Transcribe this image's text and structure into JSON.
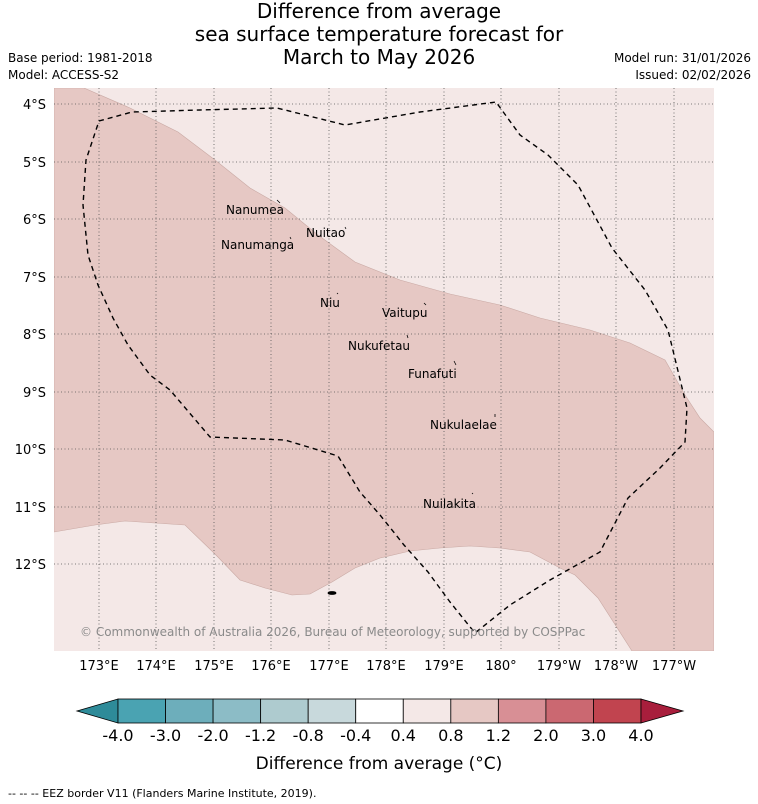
{
  "title": {
    "line1": "Difference from average",
    "line2": "sea surface temperature forecast for",
    "line3": "March to May 2026"
  },
  "meta": {
    "base_period": "Base period: 1981-2018",
    "model": "Model: ACCESS-S2",
    "model_run": "Model run: 31/01/2026",
    "issued": "Issued: 02/02/2026"
  },
  "map": {
    "lat_labels": [
      "4°S",
      "5°S",
      "6°S",
      "7°S",
      "8°S",
      "9°S",
      "10°S",
      "11°S",
      "12°S"
    ],
    "lon_labels": [
      "173°E",
      "174°E",
      "175°E",
      "176°E",
      "177°E",
      "178°E",
      "179°E",
      "180°",
      "179°W",
      "178°W",
      "177°W"
    ],
    "islands": [
      "Nanumea",
      "Nuitao",
      "Nanumanga",
      "Niu",
      "Vaitupu",
      "Nukufetau",
      "Funafuti",
      "Nukulaelae",
      "Nuilakita"
    ],
    "copyright": "© Commonwealth of Australia 2026, Bureau of Meteorology, supported by COSPPac",
    "fill_colors": {
      "light": "#f4e8e7",
      "medium": "#e6c8c4"
    }
  },
  "colorbar": {
    "ticks": [
      "-4.0",
      "-3.0",
      "-2.0",
      "-1.2",
      "-0.8",
      "-0.4",
      "0.4",
      "0.8",
      "1.2",
      "2.0",
      "3.0",
      "4.0"
    ],
    "colors": [
      "#2e8b99",
      "#4aa3b2",
      "#6daebb",
      "#8cbcc6",
      "#aecbcf",
      "#c8d9dc",
      "#ffffff",
      "#f4e8e7",
      "#e6c8c4",
      "#d88f95",
      "#cb6871",
      "#c1444f",
      "#a81e3c"
    ],
    "label": "Difference from average (°C)"
  },
  "footer": {
    "eez": "--  --  -- EEZ border V11 (Flanders Marine Institute, 2019)."
  }
}
